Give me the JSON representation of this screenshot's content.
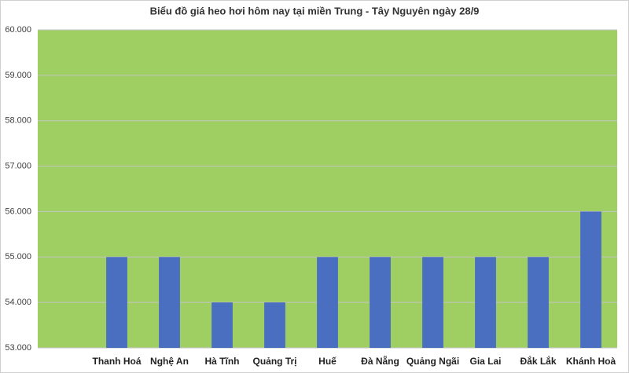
{
  "chart_data": {
    "type": "bar",
    "title": "Biểu đồ giá heo hơi hôm nay tại miền Trung - Tây Nguyên ngày 28/9",
    "categories": [
      null,
      "Thanh Hoá",
      "Nghệ An",
      "Hà Tĩnh",
      "Quảng Trị",
      "Huế",
      "Đà Nẵng",
      "Quảng Ngãi",
      "Gia Lai",
      "Đắk Lắk",
      "Khánh Hoà"
    ],
    "values": [
      null,
      55000,
      55000,
      54000,
      54000,
      55000,
      55000,
      55000,
      55000,
      55000,
      56000
    ],
    "color": "#4a6fc1",
    "plot_background": "#9fcf62",
    "ylim": [
      53000,
      60000
    ],
    "yticks": [
      {
        "value": 53000,
        "label": "53.000"
      },
      {
        "value": 54000,
        "label": "54.000"
      },
      {
        "value": 55000,
        "label": "55.000"
      },
      {
        "value": 56000,
        "label": "56.000"
      },
      {
        "value": 57000,
        "label": "57.000"
      },
      {
        "value": 58000,
        "label": "58.000"
      },
      {
        "value": 59000,
        "label": "59.000"
      },
      {
        "value": 60000,
        "label": "60.000"
      }
    ],
    "grid": true
  }
}
